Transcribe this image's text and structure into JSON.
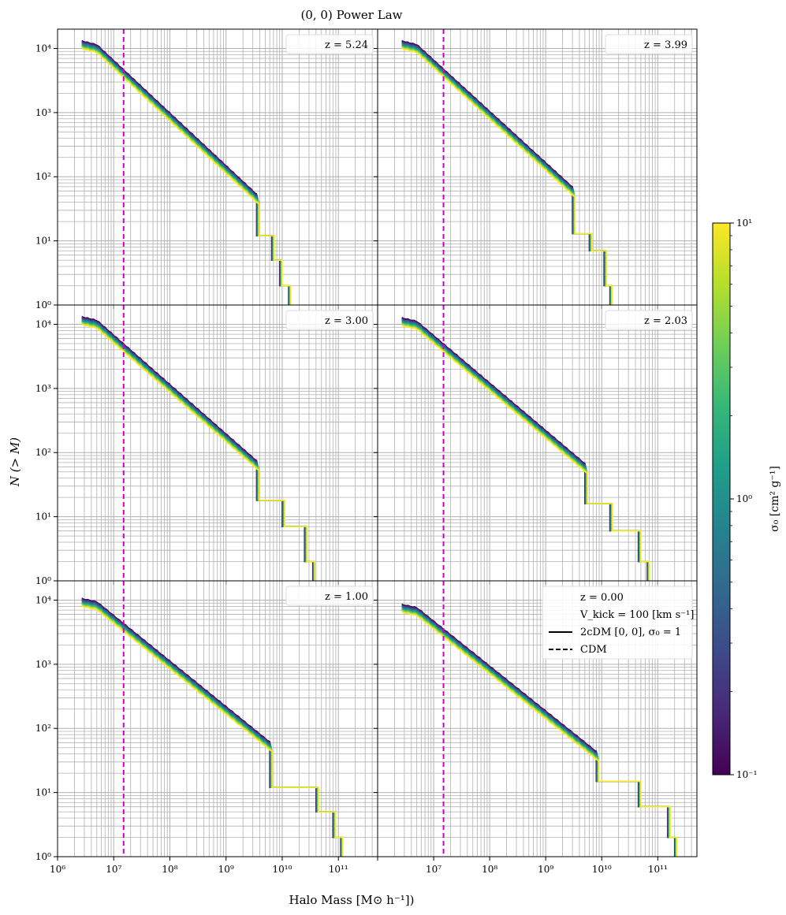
{
  "figure": {
    "title": "(0, 0) Power Law",
    "xlabel": "Halo Mass [M⊙ h⁻¹])",
    "ylabel": "N (> M)"
  },
  "colorbar": {
    "label": "σ₀ [cm² g⁻¹]",
    "scale": "log",
    "range": [
      0.1,
      10
    ],
    "tick_labels": [
      "10⁻¹",
      "10⁰",
      "10¹"
    ],
    "colormap": [
      "#440154",
      "#482878",
      "#3e4989",
      "#31688e",
      "#26828e",
      "#1f9e89",
      "#35b779",
      "#6ece58",
      "#b5de2b",
      "#fde725"
    ]
  },
  "legend": {
    "lines": [
      "z = 0.00",
      "V_kick = 100 [km s⁻¹]"
    ],
    "entries": [
      {
        "label": "2cDM [0, 0], σ₀ = 1",
        "style": "solid"
      },
      {
        "label": "CDM",
        "style": "dashed"
      }
    ]
  },
  "chart_data": {
    "type": "line",
    "xscale": "log",
    "yscale": "log",
    "xlim": [
      1000000.0,
      500000000000.0
    ],
    "ylim": [
      1,
      20000
    ],
    "grid": true,
    "x_tick_labels": [
      "10⁶",
      "10⁷",
      "10⁸",
      "10⁹",
      "10¹⁰",
      "10¹¹"
    ],
    "y_tick_labels": [
      "10⁰",
      "10¹",
      "10²",
      "10³",
      "10⁴"
    ],
    "vertical_line": {
      "x": 15000000.0,
      "color": "#cc00cc",
      "style": "dashed"
    },
    "sigma_values": [
      0.1,
      0.167,
      0.278,
      0.464,
      0.774,
      1.29,
      2.15,
      3.59,
      5.99,
      10
    ],
    "panels": [
      {
        "label": "z = 5.24",
        "curve": {
          "m_min": 2700000.0,
          "n_max": 13000,
          "m_knee": 5000000.0,
          "slope": 0.82,
          "m_max": 13000000000.0,
          "steps": [
            [
              3500000000.0,
              12
            ],
            [
              6500000000.0,
              5
            ],
            [
              9000000000.0,
              2
            ]
          ]
        }
      },
      {
        "label": "z = 3.99",
        "curve": {
          "m_min": 2700000.0,
          "n_max": 13000,
          "m_knee": 5000000.0,
          "slope": 0.8,
          "m_max": 14000000000.0,
          "steps": [
            [
              3000000000.0,
              13
            ],
            [
              6000000000.0,
              7
            ],
            [
              11000000000.0,
              2
            ]
          ]
        }
      },
      {
        "label": "z = 3.00",
        "curve": {
          "m_min": 2700000.0,
          "n_max": 13000,
          "m_knee": 5000000.0,
          "slope": 0.77,
          "m_max": 35000000000.0,
          "steps": [
            [
              3500000000.0,
              18
            ],
            [
              10000000000.0,
              7
            ],
            [
              25000000000.0,
              2
            ]
          ]
        }
      },
      {
        "label": "z = 2.03",
        "curve": {
          "m_min": 2700000.0,
          "n_max": 12500,
          "m_knee": 5000000.0,
          "slope": 0.74,
          "m_max": 65000000000.0,
          "steps": [
            [
              5000000000.0,
              16
            ],
            [
              14000000000.0,
              6
            ],
            [
              45000000000.0,
              2
            ]
          ]
        }
      },
      {
        "label": "z = 1.00",
        "curve": {
          "m_min": 2700000.0,
          "n_max": 10500,
          "m_knee": 5000000.0,
          "slope": 0.71,
          "m_max": 110000000000.0,
          "steps": [
            [
              6000000000.0,
              12
            ],
            [
              40000000000.0,
              5
            ],
            [
              80000000000.0,
              2
            ]
          ]
        }
      },
      {
        "label": "z = 0.00",
        "curve": {
          "m_min": 2700000.0,
          "n_max": 8500,
          "m_knee": 5000000.0,
          "slope": 0.7,
          "m_max": 200000000000.0,
          "steps": [
            [
              8000000000.0,
              15
            ],
            [
              45000000000.0,
              6
            ],
            [
              150000000000.0,
              2
            ]
          ]
        }
      }
    ]
  }
}
